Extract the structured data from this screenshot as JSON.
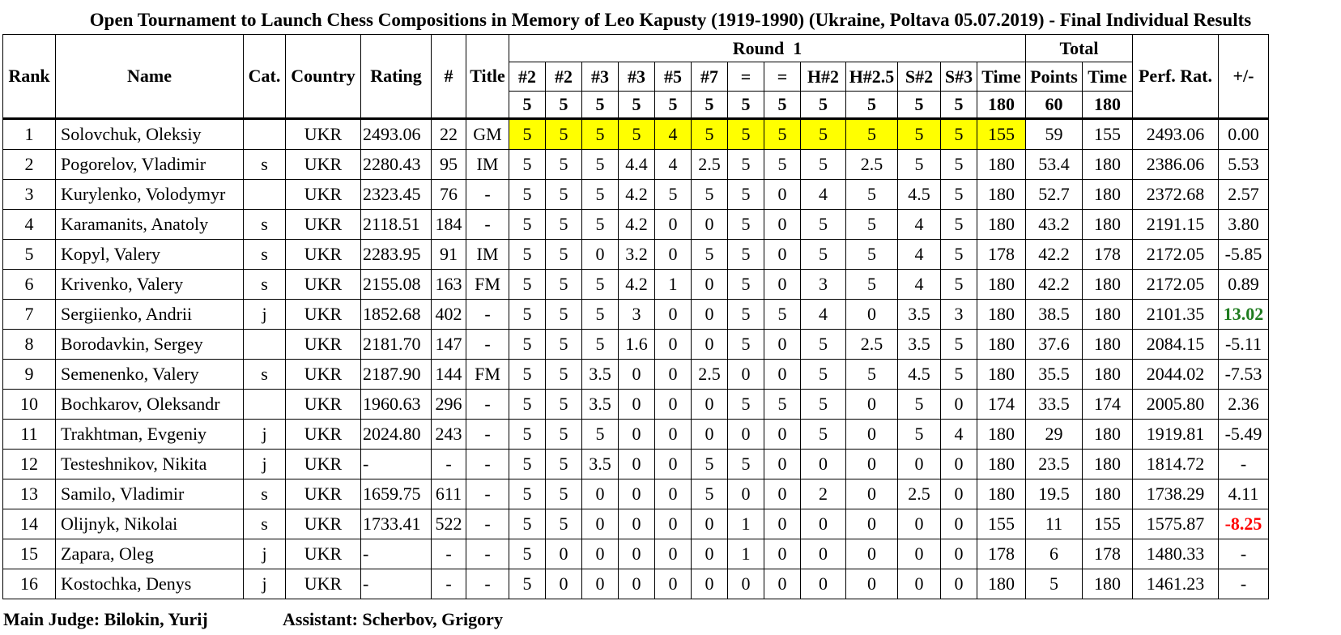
{
  "title": "Open Tournament to Launch Chess Compositions in Memory of Leo Kapusty (1919-1990) (Ukraine, Poltava 05.07.2019) - Final Individual Results",
  "headers": {
    "rank": "Rank",
    "name": "Name",
    "cat": "Cat.",
    "country": "Country",
    "rating": "Rating",
    "num": "#",
    "title": "Title",
    "round": "Round  1",
    "total": "Total",
    "perf": "Perf. Rat.",
    "delta": "+/-",
    "problems": [
      "#2",
      "#2",
      "#3",
      "#3",
      "#5",
      "#7",
      "=",
      "=",
      "H#2",
      "H#2.5",
      "S#2",
      "S#3",
      "Time"
    ],
    "totals": [
      "Points",
      "Time"
    ],
    "max_round": [
      "5",
      "5",
      "5",
      "5",
      "5",
      "5",
      "5",
      "5",
      "5",
      "5",
      "5",
      "5",
      "180"
    ],
    "max_total": [
      "60",
      "180"
    ]
  },
  "highlight_color": "#ffff00",
  "positive_color": "#1e7b1e",
  "negative_color": "#ff0000",
  "rows": [
    {
      "rank": "1",
      "name": "Solovchuk, Oleksiy",
      "cat": "",
      "country": "UKR",
      "rating": "2493.06",
      "num": "22",
      "title": "GM",
      "scores": [
        "5",
        "5",
        "5",
        "5",
        "4",
        "5",
        "5",
        "5",
        "5",
        "5",
        "5",
        "5",
        "155"
      ],
      "points": "59",
      "time": "155",
      "perf": "2493.06",
      "delta": "0.00",
      "highlight": true
    },
    {
      "rank": "2",
      "name": "Pogorelov, Vladimir",
      "cat": "s",
      "country": "UKR",
      "rating": "2280.43",
      "num": "95",
      "title": "IM",
      "scores": [
        "5",
        "5",
        "5",
        "4.4",
        "4",
        "2.5",
        "5",
        "5",
        "5",
        "2.5",
        "5",
        "5",
        "180"
      ],
      "points": "53.4",
      "time": "180",
      "perf": "2386.06",
      "delta": "5.53"
    },
    {
      "rank": "3",
      "name": "Kurylenko, Volodymyr",
      "cat": "",
      "country": "UKR",
      "rating": "2323.45",
      "num": "76",
      "title": "-",
      "scores": [
        "5",
        "5",
        "5",
        "4.2",
        "5",
        "5",
        "5",
        "0",
        "4",
        "5",
        "4.5",
        "5",
        "180"
      ],
      "points": "52.7",
      "time": "180",
      "perf": "2372.68",
      "delta": "2.57"
    },
    {
      "rank": "4",
      "name": "Karamanits, Anatoly",
      "cat": "s",
      "country": "UKR",
      "rating": "2118.51",
      "num": "184",
      "title": "-",
      "scores": [
        "5",
        "5",
        "5",
        "4.2",
        "0",
        "0",
        "5",
        "0",
        "5",
        "5",
        "4",
        "5",
        "180"
      ],
      "points": "43.2",
      "time": "180",
      "perf": "2191.15",
      "delta": "3.80"
    },
    {
      "rank": "5",
      "name": "Kopyl, Valery",
      "cat": "s",
      "country": "UKR",
      "rating": "2283.95",
      "num": "91",
      "title": "IM",
      "scores": [
        "5",
        "5",
        "0",
        "3.2",
        "0",
        "5",
        "5",
        "0",
        "5",
        "5",
        "4",
        "5",
        "178"
      ],
      "points": "42.2",
      "time": "178",
      "perf": "2172.05",
      "delta": "-5.85"
    },
    {
      "rank": "6",
      "name": "Krivenko, Valery",
      "cat": "s",
      "country": "UKR",
      "rating": "2155.08",
      "num": "163",
      "title": "FM",
      "scores": [
        "5",
        "5",
        "5",
        "4.2",
        "1",
        "0",
        "5",
        "0",
        "3",
        "5",
        "4",
        "5",
        "180"
      ],
      "points": "42.2",
      "time": "180",
      "perf": "2172.05",
      "delta": "0.89"
    },
    {
      "rank": "7",
      "name": "Sergiienko, Andrii",
      "cat": "j",
      "country": "UKR",
      "rating": "1852.68",
      "num": "402",
      "title": "-",
      "scores": [
        "5",
        "5",
        "5",
        "3",
        "0",
        "0",
        "5",
        "5",
        "4",
        "0",
        "3.5",
        "3",
        "180"
      ],
      "points": "38.5",
      "time": "180",
      "perf": "2101.35",
      "delta": "13.02",
      "delta_style": "pos"
    },
    {
      "rank": "8",
      "name": "Borodavkin, Sergey",
      "cat": "",
      "country": "UKR",
      "rating": "2181.70",
      "num": "147",
      "title": "-",
      "scores": [
        "5",
        "5",
        "5",
        "1.6",
        "0",
        "0",
        "5",
        "0",
        "5",
        "2.5",
        "3.5",
        "5",
        "180"
      ],
      "points": "37.6",
      "time": "180",
      "perf": "2084.15",
      "delta": "-5.11"
    },
    {
      "rank": "9",
      "name": "Semenenko, Valery",
      "cat": "s",
      "country": "UKR",
      "rating": "2187.90",
      "num": "144",
      "title": "FM",
      "scores": [
        "5",
        "5",
        "3.5",
        "0",
        "0",
        "2.5",
        "0",
        "0",
        "5",
        "5",
        "4.5",
        "5",
        "180"
      ],
      "points": "35.5",
      "time": "180",
      "perf": "2044.02",
      "delta": "-7.53"
    },
    {
      "rank": "10",
      "name": "Bochkarov, Oleksandr",
      "cat": "",
      "country": "UKR",
      "rating": "1960.63",
      "num": "296",
      "title": "-",
      "scores": [
        "5",
        "5",
        "3.5",
        "0",
        "0",
        "0",
        "5",
        "5",
        "5",
        "0",
        "5",
        "0",
        "174"
      ],
      "points": "33.5",
      "time": "174",
      "perf": "2005.80",
      "delta": "2.36"
    },
    {
      "rank": "11",
      "name": "Trakhtman, Evgeniy",
      "cat": "j",
      "country": "UKR",
      "rating": "2024.80",
      "num": "243",
      "title": "-",
      "scores": [
        "5",
        "5",
        "5",
        "0",
        "0",
        "0",
        "0",
        "0",
        "5",
        "0",
        "5",
        "4",
        "180"
      ],
      "points": "29",
      "time": "180",
      "perf": "1919.81",
      "delta": "-5.49"
    },
    {
      "rank": "12",
      "name": "Testeshnikov, Nikita",
      "cat": "j",
      "country": "UKR",
      "rating": "-",
      "num": "-",
      "title": "-",
      "scores": [
        "5",
        "5",
        "3.5",
        "0",
        "0",
        "5",
        "5",
        "0",
        "0",
        "0",
        "0",
        "0",
        "180"
      ],
      "points": "23.5",
      "time": "180",
      "perf": "1814.72",
      "delta": "-"
    },
    {
      "rank": "13",
      "name": "Samilo, Vladimir",
      "cat": "s",
      "country": "UKR",
      "rating": "1659.75",
      "num": "611",
      "title": "-",
      "scores": [
        "5",
        "5",
        "0",
        "0",
        "0",
        "5",
        "0",
        "0",
        "2",
        "0",
        "2.5",
        "0",
        "180"
      ],
      "points": "19.5",
      "time": "180",
      "perf": "1738.29",
      "delta": "4.11"
    },
    {
      "rank": "14",
      "name": "Olijnyk, Nikolai",
      "cat": "s",
      "country": "UKR",
      "rating": "1733.41",
      "num": "522",
      "title": "-",
      "scores": [
        "5",
        "5",
        "0",
        "0",
        "0",
        "0",
        "1",
        "0",
        "0",
        "0",
        "0",
        "0",
        "155"
      ],
      "points": "11",
      "time": "155",
      "perf": "1575.87",
      "delta": "-8.25",
      "delta_style": "neg"
    },
    {
      "rank": "15",
      "name": "Zapara, Oleg",
      "cat": "j",
      "country": "UKR",
      "rating": "-",
      "num": "-",
      "title": "-",
      "scores": [
        "5",
        "0",
        "0",
        "0",
        "0",
        "0",
        "1",
        "0",
        "0",
        "0",
        "0",
        "0",
        "178"
      ],
      "points": "6",
      "time": "178",
      "perf": "1480.33",
      "delta": "-"
    },
    {
      "rank": "16",
      "name": "Kostochka, Denys",
      "cat": "j",
      "country": "UKR",
      "rating": "-",
      "num": "-",
      "title": "-",
      "scores": [
        "5",
        "0",
        "0",
        "0",
        "0",
        "0",
        "0",
        "0",
        "0",
        "0",
        "0",
        "0",
        "180"
      ],
      "points": "5",
      "time": "180",
      "perf": "1461.23",
      "delta": "-"
    }
  ],
  "footer": {
    "judge": "Main Judge: Bilokin, Yurij",
    "assistant": "Assistant: Scherbov, Grigory"
  }
}
